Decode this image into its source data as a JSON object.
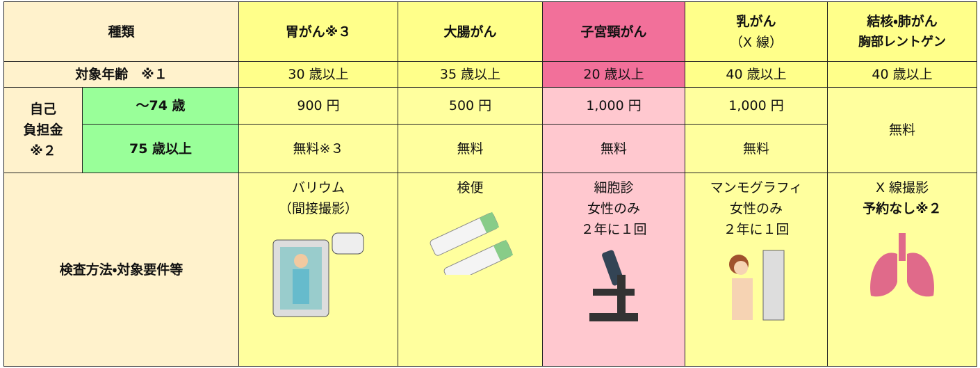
{
  "header": {
    "label": "種類",
    "columns": [
      [
        "胃がん※３"
      ],
      [
        "大腸がん"
      ],
      [
        "子宮頸がん"
      ],
      [
        "乳がん",
        "（X 線）"
      ],
      [
        "結核・肺がん",
        "胸部レントゲン"
      ]
    ]
  },
  "age": {
    "label": "対象年齢　※１",
    "values": [
      "30 歳以上",
      "35 歳以上",
      "20 歳以上",
      "40 歳以上",
      "40 歳以上"
    ]
  },
  "cost": {
    "label": [
      "自己",
      "負担金",
      "※２"
    ],
    "rows": [
      {
        "label": "〜74 歳",
        "values": [
          "900 円",
          "500 円",
          "1,000 円",
          "1,000 円"
        ]
      },
      {
        "label": "75 歳以上",
        "values": [
          "無料※３",
          "無料",
          "無料",
          "無料"
        ]
      }
    ],
    "shared": "無料"
  },
  "method": {
    "label": "検査方法・対象要件等",
    "columns": [
      [
        "バリウム",
        "（間接撮影）"
      ],
      [
        "検便"
      ],
      [
        "細胞診",
        "女性のみ",
        "２年に１回"
      ],
      [
        "マンモグラフィ",
        "女性のみ",
        "２年に１回"
      ],
      [
        "X 線撮影",
        "予約なし※２"
      ]
    ]
  }
}
